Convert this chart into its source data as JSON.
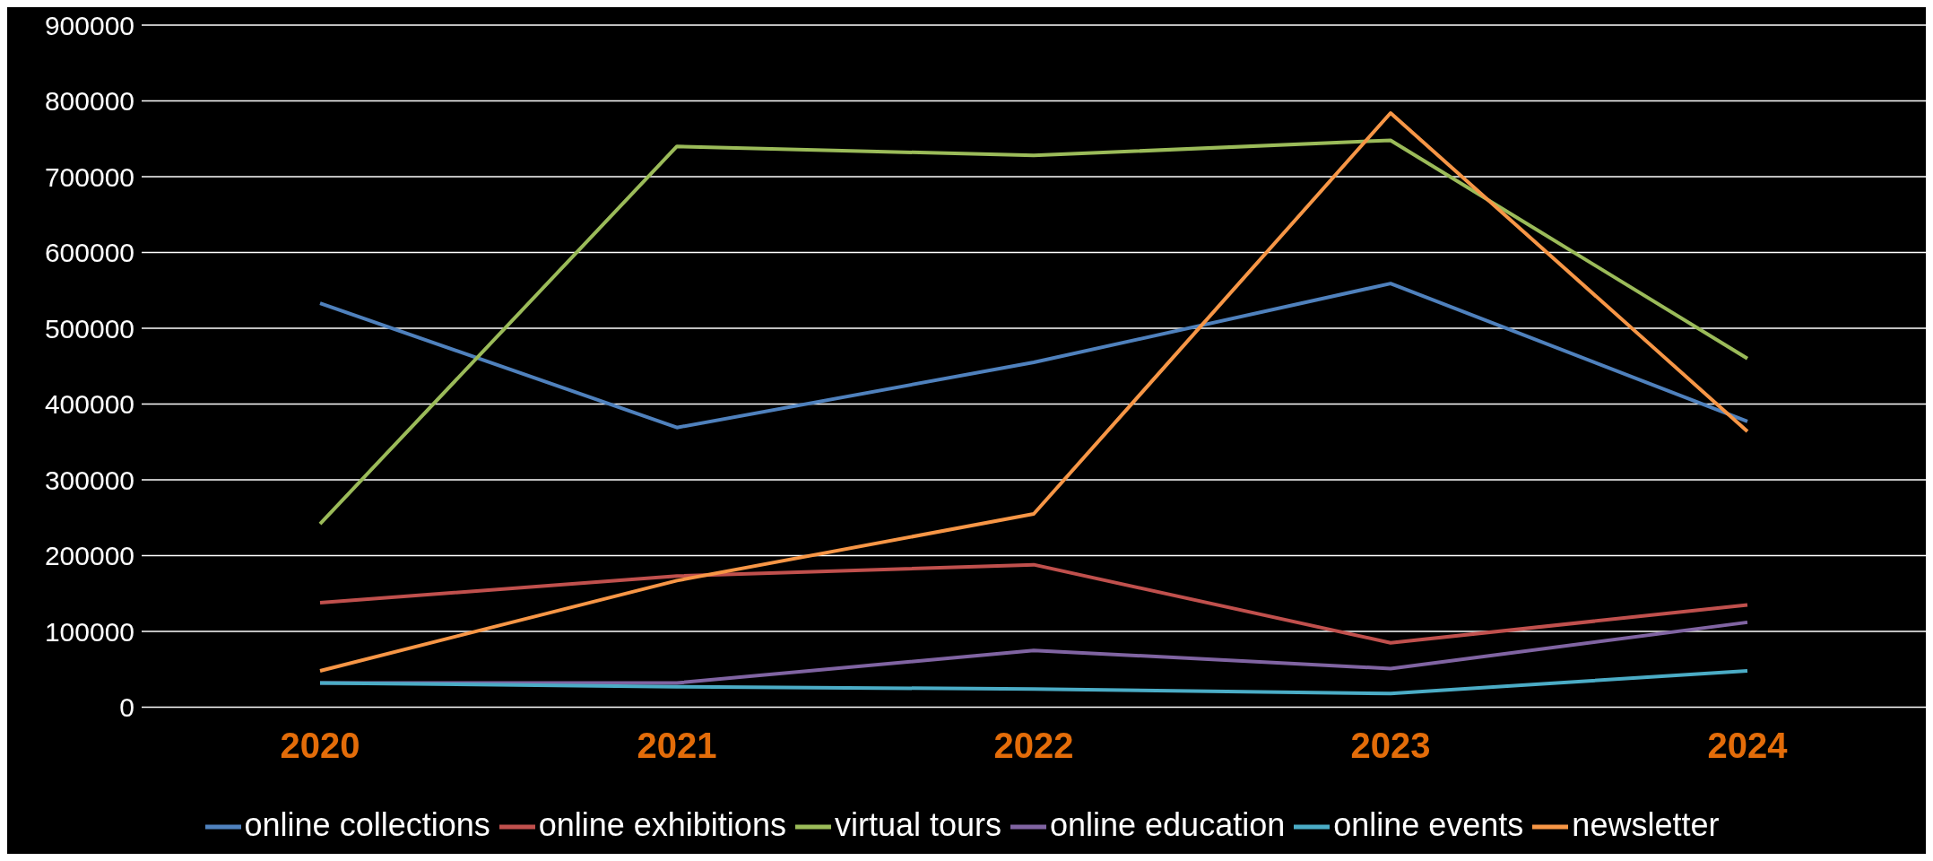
{
  "chart_data": {
    "type": "line",
    "categories": [
      "2020",
      "2021",
      "2022",
      "2023",
      "2024"
    ],
    "series": [
      {
        "name": "online collections",
        "color": "#4f81bd",
        "values": [
          533000,
          369000,
          455000,
          559000,
          377000
        ]
      },
      {
        "name": "online exhibitions",
        "color": "#c0504d",
        "values": [
          138000,
          173000,
          188000,
          85000,
          135000
        ]
      },
      {
        "name": "virtual tours",
        "color": "#9bbb59",
        "values": [
          242000,
          740000,
          728000,
          748000,
          460000
        ]
      },
      {
        "name": "online education",
        "color": "#8064a2",
        "values": [
          32000,
          32000,
          75000,
          51000,
          112000
        ]
      },
      {
        "name": "online events",
        "color": "#4bacc6",
        "values": [
          32000,
          27000,
          24000,
          18000,
          48000
        ]
      },
      {
        "name": "newsletter",
        "color": "#f79646",
        "values": [
          48000,
          167000,
          255000,
          784000,
          364000
        ]
      }
    ],
    "ylim": [
      0,
      900000
    ],
    "yticks": [
      0,
      100000,
      200000,
      300000,
      400000,
      500000,
      600000,
      700000,
      800000,
      900000
    ],
    "grid": "y",
    "legend": "bottom",
    "marker": "none",
    "line_style": "solid"
  }
}
